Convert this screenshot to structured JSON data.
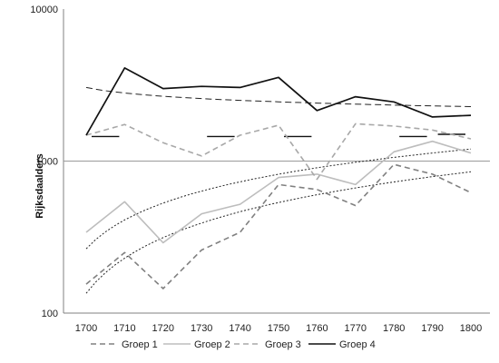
{
  "chart_data": {
    "type": "line",
    "ylabel": "Rijksdaalders",
    "yscale": "log",
    "ylim": [
      100,
      10000
    ],
    "y_ticks": [
      "100",
      "1000",
      "10000"
    ],
    "categories": [
      "1700",
      "1710",
      "1720",
      "1730",
      "1740",
      "1750",
      "1760",
      "1770",
      "1780",
      "1790",
      "1800"
    ],
    "series": [
      {
        "name": "Groep 1",
        "style": "dashed",
        "color": "#808080",
        "values": [
          155,
          250,
          145,
          260,
          340,
          700,
          650,
          510,
          950,
          820,
          620
        ]
      },
      {
        "name": "Groep 2",
        "style": "solid",
        "color": "#bdbdbd",
        "values": [
          340,
          540,
          290,
          450,
          520,
          780,
          820,
          700,
          1150,
          1350,
          1130
        ]
      },
      {
        "name": "Groep 3",
        "style": "dashed",
        "color": "#a8a8a8",
        "values": [
          1480,
          1740,
          1320,
          1080,
          1480,
          1720,
          760,
          1760,
          1700,
          1600,
          1400
        ]
      },
      {
        "name": "Groep 4",
        "style": "solid",
        "color": "#111111",
        "values": [
          1480,
          4100,
          3000,
          3100,
          3050,
          3550,
          2150,
          2650,
          2450,
          1950,
          2000
        ]
      }
    ],
    "trendlines": [
      {
        "of": "Groep 1",
        "type": "log",
        "start": 135,
        "end": 850
      },
      {
        "of": "Groep 2",
        "type": "log",
        "start": 265,
        "end": 1200
      },
      {
        "of": "Groep 4",
        "type": "log",
        "start": 3050,
        "end": 2280
      }
    ],
    "moving_average_segments": [
      {
        "of": "Groep 3",
        "x_from": "1700",
        "x_to": "1710",
        "value": 1450
      },
      {
        "of": "Groep 3",
        "x_from": "1730",
        "x_to": "1740",
        "value": 1450
      },
      {
        "of": "Groep 3",
        "x_from": "1750",
        "x_to": "1760",
        "value": 1450
      },
      {
        "of": "Groep 3",
        "x_from": "1780",
        "x_to": "1790",
        "value": 1450
      },
      {
        "of": "Groep 4",
        "x_from": "1790",
        "x_to": "1800",
        "value": 1500
      }
    ],
    "reference_line": 1000,
    "grid": false,
    "legend": "bottom"
  }
}
